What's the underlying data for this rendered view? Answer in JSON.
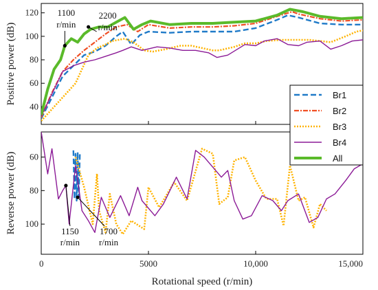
{
  "chart_data": {
    "type": "line",
    "xlabel": "Rotational speed (r/min)",
    "xlim": [
      0,
      15000
    ],
    "x_ticks": [
      "0",
      "5000",
      "10,000",
      "15,000"
    ],
    "x_tick_values": [
      0,
      5000,
      10000,
      15000
    ],
    "legend_position": "right",
    "grid": false,
    "panels": [
      {
        "id": "positive",
        "ylabel": "Positive power (dB)",
        "ylim": [
          25,
          128
        ],
        "y_axis_direction": "normal",
        "y_ticks": [
          "40",
          "60",
          "80",
          "100",
          "120"
        ],
        "y_tick_values": [
          40,
          60,
          80,
          100,
          120
        ],
        "annotations": [
          {
            "text": [
              "1100",
              "r/min"
            ],
            "x": 1100,
            "y": 92
          },
          {
            "text": [
              "2200",
              "r/min"
            ],
            "x": 2200,
            "y": 108
          }
        ]
      },
      {
        "id": "reverse",
        "ylabel": "Reverse power (dB)",
        "ylim": [
          45,
          118
        ],
        "y_axis_direction": "reversed",
        "y_ticks": [
          "60",
          "80",
          "100"
        ],
        "y_tick_values": [
          60,
          80,
          100
        ],
        "annotations": [
          {
            "text": [
              "1150",
              "r/min"
            ],
            "x": 1150,
            "y": 77
          },
          {
            "text": [
              "1700",
              "r/min"
            ],
            "x": 1700,
            "y": 84
          }
        ]
      }
    ],
    "series": [
      {
        "name": "Br1",
        "color": "#1f7ac8",
        "dash": "8,4",
        "width": 2.4,
        "positive": [
          [
            0,
            30
          ],
          [
            500,
            48
          ],
          [
            1000,
            66
          ],
          [
            1500,
            75
          ],
          [
            2000,
            84
          ],
          [
            2500,
            87
          ],
          [
            3000,
            92
          ],
          [
            3500,
            100
          ],
          [
            3800,
            104
          ],
          [
            4200,
            93
          ],
          [
            4600,
            101
          ],
          [
            5000,
            104
          ],
          [
            6000,
            103
          ],
          [
            7000,
            104
          ],
          [
            8000,
            104
          ],
          [
            9000,
            104
          ],
          [
            10000,
            107
          ],
          [
            11000,
            114
          ],
          [
            11500,
            118
          ],
          [
            12000,
            116
          ],
          [
            13000,
            111
          ],
          [
            14000,
            110
          ],
          [
            15000,
            110
          ]
        ],
        "reverse": [
          [
            1500,
            56
          ],
          [
            1550,
            85
          ],
          [
            1600,
            58
          ],
          [
            1650,
            86
          ],
          [
            1700,
            57
          ],
          [
            1750,
            84
          ],
          [
            1800,
            58
          ]
        ]
      },
      {
        "name": "Br2",
        "color": "#f04e23",
        "dash": "7,2,2,2",
        "width": 2.2,
        "positive": [
          [
            0,
            31
          ],
          [
            500,
            52
          ],
          [
            1000,
            70
          ],
          [
            1500,
            80
          ],
          [
            2000,
            88
          ],
          [
            2500,
            95
          ],
          [
            3000,
            102
          ],
          [
            3500,
            108
          ],
          [
            4000,
            110
          ],
          [
            4500,
            104
          ],
          [
            5000,
            110
          ],
          [
            6000,
            107
          ],
          [
            7000,
            108
          ],
          [
            8000,
            108
          ],
          [
            9000,
            109
          ],
          [
            10000,
            111
          ],
          [
            11000,
            117
          ],
          [
            11700,
            121
          ],
          [
            12000,
            119
          ],
          [
            13000,
            115
          ],
          [
            14000,
            113
          ],
          [
            15000,
            114
          ]
        ],
        "reverse": []
      },
      {
        "name": "Br3",
        "color": "#ffb300",
        "dash": "2,2",
        "width": 2.6,
        "positive": [
          [
            0,
            28
          ],
          [
            1600,
            60
          ],
          [
            2200,
            84
          ],
          [
            2600,
            90
          ],
          [
            3000,
            93
          ],
          [
            3300,
            96
          ],
          [
            3900,
            98
          ],
          [
            4300,
            95
          ],
          [
            4800,
            88
          ],
          [
            5200,
            87
          ],
          [
            5800,
            89
          ],
          [
            6500,
            92
          ],
          [
            7000,
            92
          ],
          [
            7500,
            90
          ],
          [
            8000,
            88
          ],
          [
            8300,
            88
          ],
          [
            9000,
            91
          ],
          [
            9500,
            94
          ],
          [
            10000,
            94
          ],
          [
            10500,
            96
          ],
          [
            11200,
            97
          ],
          [
            11600,
            97
          ],
          [
            12500,
            97
          ],
          [
            13500,
            95
          ],
          [
            14200,
            100
          ],
          [
            14700,
            104
          ],
          [
            15000,
            105
          ]
        ],
        "reverse": [
          [
            1600,
            60
          ],
          [
            2000,
            78
          ],
          [
            2400,
            100
          ],
          [
            2600,
            70
          ],
          [
            2700,
            92
          ],
          [
            3000,
            105
          ],
          [
            3200,
            82
          ],
          [
            3500,
            100
          ],
          [
            3800,
            106
          ],
          [
            4200,
            98
          ],
          [
            4800,
            103
          ],
          [
            5000,
            78
          ],
          [
            5500,
            90
          ],
          [
            6200,
            75
          ],
          [
            6800,
            86
          ],
          [
            7500,
            55
          ],
          [
            8000,
            58
          ],
          [
            8300,
            88
          ],
          [
            8700,
            84
          ],
          [
            9000,
            62
          ],
          [
            9500,
            60
          ],
          [
            10000,
            74
          ],
          [
            10500,
            85
          ],
          [
            11000,
            85
          ],
          [
            11300,
            101
          ],
          [
            11600,
            65
          ],
          [
            12000,
            86
          ],
          [
            12300,
            84
          ],
          [
            12700,
            102
          ],
          [
            13000,
            88
          ],
          [
            13300,
            92
          ]
        ]
      },
      {
        "name": "Br4",
        "color": "#8b1a96",
        "dash": "",
        "width": 1.4,
        "positive": [
          [
            0,
            32
          ],
          [
            1000,
            70
          ],
          [
            1500,
            75
          ],
          [
            2000,
            78
          ],
          [
            2500,
            80
          ],
          [
            3000,
            83
          ],
          [
            3500,
            86
          ],
          [
            3800,
            88
          ],
          [
            4200,
            91
          ],
          [
            4700,
            88
          ],
          [
            5400,
            91
          ],
          [
            6000,
            90
          ],
          [
            6600,
            88
          ],
          [
            7200,
            88
          ],
          [
            7800,
            86
          ],
          [
            8200,
            82
          ],
          [
            8700,
            84
          ],
          [
            9500,
            93
          ],
          [
            10000,
            92
          ],
          [
            10400,
            96
          ],
          [
            11000,
            98
          ],
          [
            11500,
            93
          ],
          [
            12000,
            92
          ],
          [
            12400,
            95
          ],
          [
            13000,
            96
          ],
          [
            13500,
            89
          ],
          [
            14000,
            92
          ],
          [
            14500,
            96
          ],
          [
            15000,
            97
          ]
        ],
        "reverse": [
          [
            0,
            45
          ],
          [
            300,
            70
          ],
          [
            500,
            55
          ],
          [
            800,
            85
          ],
          [
            1000,
            80
          ],
          [
            1150,
            77
          ],
          [
            1300,
            100
          ],
          [
            1600,
            65
          ],
          [
            1900,
            92
          ],
          [
            2200,
            98
          ],
          [
            2500,
            105
          ],
          [
            2800,
            84
          ],
          [
            3200,
            96
          ],
          [
            3700,
            83
          ],
          [
            4100,
            95
          ],
          [
            4500,
            78
          ],
          [
            4700,
            86
          ],
          [
            5300,
            95
          ],
          [
            5700,
            88
          ],
          [
            6300,
            72
          ],
          [
            6800,
            85
          ],
          [
            7200,
            56
          ],
          [
            7600,
            60
          ],
          [
            8400,
            72
          ],
          [
            8700,
            68
          ],
          [
            9000,
            86
          ],
          [
            9400,
            97
          ],
          [
            9800,
            95
          ],
          [
            10300,
            83
          ],
          [
            10800,
            86
          ],
          [
            11200,
            92
          ],
          [
            11500,
            86
          ],
          [
            12000,
            82
          ],
          [
            12500,
            99
          ],
          [
            12900,
            96
          ],
          [
            13300,
            85
          ],
          [
            13700,
            82
          ],
          [
            14200,
            74
          ],
          [
            14600,
            67
          ],
          [
            15000,
            64
          ]
        ]
      },
      {
        "name": "All",
        "color": "#5aba2a",
        "dash": "",
        "width": 4,
        "positive": [
          [
            0,
            33
          ],
          [
            300,
            55
          ],
          [
            600,
            72
          ],
          [
            900,
            80
          ],
          [
            1100,
            92
          ],
          [
            1400,
            98
          ],
          [
            1700,
            95
          ],
          [
            2000,
            102
          ],
          [
            2300,
            106
          ],
          [
            2700,
            108
          ],
          [
            3100,
            108
          ],
          [
            3500,
            112
          ],
          [
            3900,
            116
          ],
          [
            4300,
            106
          ],
          [
            4700,
            110
          ],
          [
            5100,
            113
          ],
          [
            6000,
            110
          ],
          [
            7000,
            111
          ],
          [
            8000,
            111
          ],
          [
            9000,
            112
          ],
          [
            10000,
            113
          ],
          [
            11000,
            118
          ],
          [
            11600,
            123
          ],
          [
            12200,
            121
          ],
          [
            13000,
            117
          ],
          [
            14000,
            115
          ],
          [
            15000,
            116
          ]
        ],
        "reverse": []
      }
    ]
  }
}
